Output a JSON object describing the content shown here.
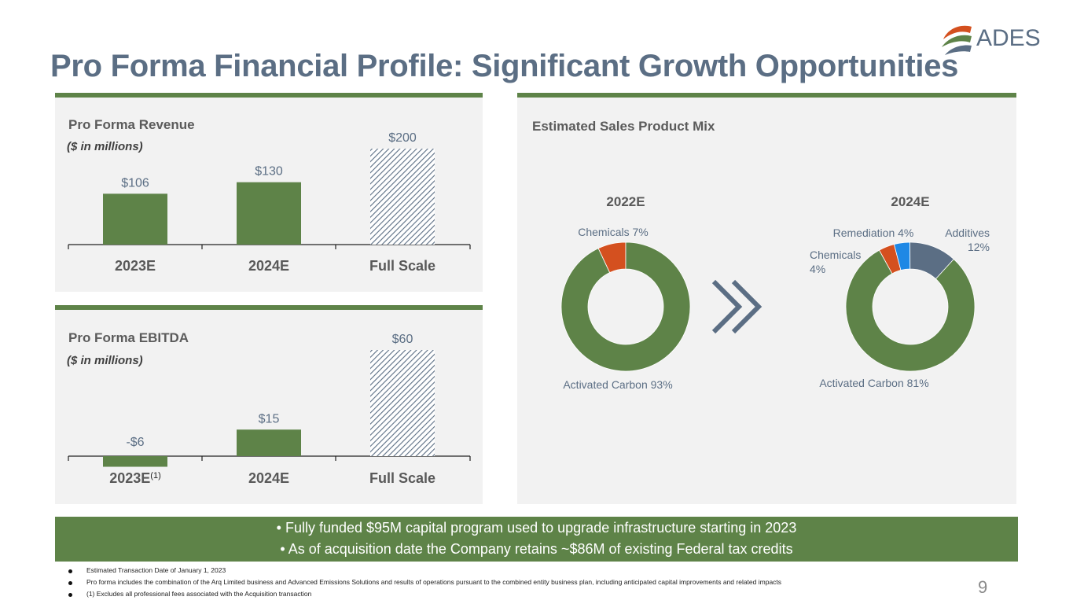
{
  "title": "Pro Forma Financial Profile: Significant Growth Opportunities",
  "logo": {
    "text": "ADES"
  },
  "revenue": {
    "title": "Pro Forma Revenue",
    "subtitle": "($ in millions)",
    "chart_data": {
      "type": "bar",
      "title": "Pro Forma Revenue",
      "categories": [
        "2023E",
        "2024E",
        "Full Scale"
      ],
      "values": [
        106,
        130,
        200
      ],
      "labels": [
        "$106",
        "$130",
        "$200"
      ],
      "ylabel": "($ in millions)"
    }
  },
  "ebitda": {
    "title": "Pro Forma EBITDA",
    "subtitle": "($ in millions)",
    "footnote_marker": "(1)",
    "chart_data": {
      "type": "bar",
      "title": "Pro Forma EBITDA",
      "categories": [
        "2023E",
        "2024E",
        "Full Scale"
      ],
      "values": [
        -6,
        15,
        60
      ],
      "labels": [
        "-$6",
        "$15",
        "$60"
      ],
      "ylabel": "($ in millions)"
    }
  },
  "mix": {
    "title": "Estimated Sales Product Mix",
    "chart_data": [
      {
        "type": "pie",
        "title": "2022E",
        "slices": [
          {
            "name": "Activated Carbon",
            "value": 93,
            "label": "Activated Carbon 93%",
            "color": "#5e8348"
          },
          {
            "name": "Chemicals",
            "value": 7,
            "label": "Chemicals 7%",
            "color": "#d4501f"
          }
        ]
      },
      {
        "type": "pie",
        "title": "2024E",
        "slices": [
          {
            "name": "Activated Carbon",
            "value": 81,
            "label": "Activated Carbon 81%",
            "color": "#5e8348"
          },
          {
            "name": "Chemicals",
            "value": 4,
            "label_line1": "Chemicals",
            "label_line2": "4%",
            "color": "#d4501f"
          },
          {
            "name": "Remediation",
            "value": 4,
            "label": "Remediation 4%",
            "color": "#1e88e5"
          },
          {
            "name": "Additives",
            "value": 12,
            "label_line1": "Additives",
            "label_line2": "12%",
            "color": "#5b6e84"
          }
        ]
      }
    ]
  },
  "banner": {
    "line1": "•  Fully funded $95M capital program used to upgrade infrastructure starting in 2023",
    "line2": "•  As of acquisition date the Company retains ~$86M of existing Federal tax credits"
  },
  "footnotes": [
    "Estimated Transaction Date of January 1, 2023",
    "Pro forma includes the combination of the Arq Limited business and Advanced Emissions Solutions and results of operations pursuant to the combined entity business plan, including anticipated capital improvements and related impacts",
    "(1)  Excludes all professional fees associated with the Acquisition transaction"
  ],
  "page_number": "9",
  "colors": {
    "green": "#5e8348",
    "slate": "#5b6e84",
    "orange": "#d4501f",
    "blue": "#1e88e5"
  }
}
